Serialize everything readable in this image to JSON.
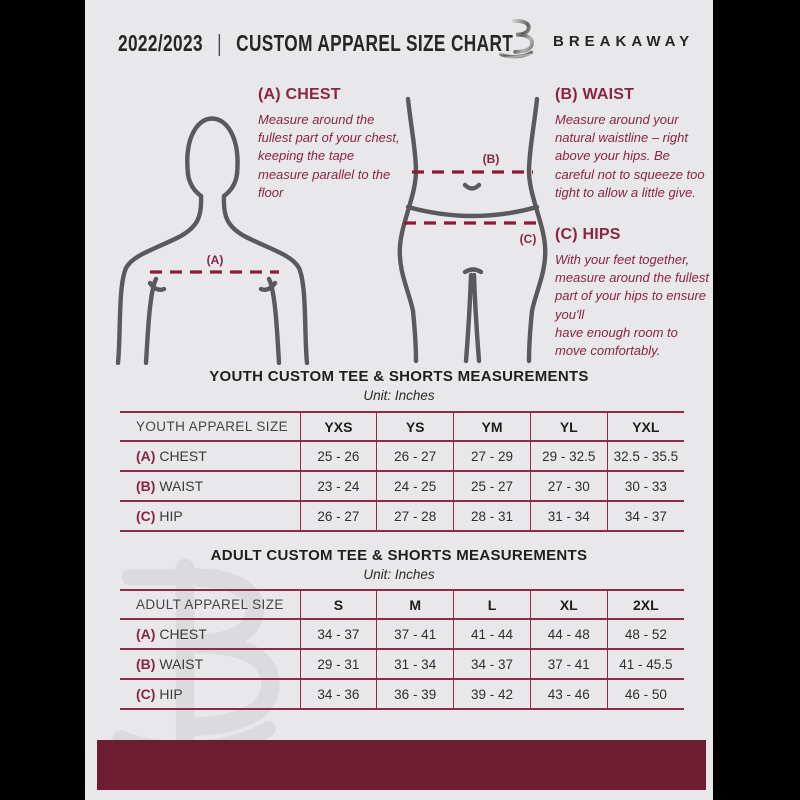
{
  "header": {
    "year": "2022/2023",
    "separator": "|",
    "title": "CUSTOM APPAREL SIZE CHART",
    "brand": "BREAKAWAY"
  },
  "guide": {
    "chest": {
      "heading": "(A) CHEST",
      "marker": "(A)",
      "description": "Measure around the fullest part of your chest, keeping the tape measure parallel to the floor"
    },
    "waist": {
      "heading": "(B) WAIST",
      "marker": "(B)",
      "description": "Measure around your natural waistline – right above your hips. Be careful not to squeeze too tight to allow a little give."
    },
    "hips": {
      "heading": "(C) HIPS",
      "marker": "(C)",
      "description": "With your feet together, measure around the fullest part of your hips to ensure you'll\nhave enough room to move comfortably."
    }
  },
  "chart_data": [
    {
      "type": "table",
      "name": "youth",
      "title": "YOUTH CUSTOM TEE & SHORTS MEASUREMENTS",
      "unit": "Unit: Inches",
      "columns": [
        "YOUTH APPAREL SIZE",
        "YXS",
        "YS",
        "YM",
        "YL",
        "YXL"
      ],
      "rows": [
        {
          "marker": "(A)",
          "label": "CHEST",
          "values": [
            "25 - 26",
            "26 - 27",
            "27 - 29",
            "29 - 32.5",
            "32.5 - 35.5"
          ]
        },
        {
          "marker": "(B)",
          "label": "WAIST",
          "values": [
            "23 - 24",
            "24 - 25",
            "25 - 27",
            "27 - 30",
            "30 - 33"
          ]
        },
        {
          "marker": "(C)",
          "label": "HIP",
          "values": [
            "26 - 27",
            "27 - 28",
            "28 - 31",
            "31 - 34",
            "34 - 37"
          ]
        }
      ]
    },
    {
      "type": "table",
      "name": "adult",
      "title": "ADULT CUSTOM TEE & SHORTS MEASUREMENTS",
      "unit": "Unit: Inches",
      "columns": [
        "ADULT APPAREL SIZE",
        "S",
        "M",
        "L",
        "XL",
        "2XL"
      ],
      "rows": [
        {
          "marker": "(A)",
          "label": "CHEST",
          "values": [
            "34 - 37",
            "37 - 41",
            "41 - 44",
            "44 - 48",
            "48 - 52"
          ]
        },
        {
          "marker": "(B)",
          "label": "WAIST",
          "values": [
            "29 - 31",
            "31 - 34",
            "34 - 37",
            "37 - 41",
            "41 - 45.5"
          ]
        },
        {
          "marker": "(C)",
          "label": "HIP",
          "values": [
            "34 - 36",
            "36 - 39",
            "39 - 42",
            "43 - 46",
            "46 - 50"
          ]
        }
      ]
    }
  ],
  "colors": {
    "accent_maroon": "#8b2346",
    "table_border_maroon": "#8f2b48",
    "footer_bar_maroon": "#6e1c32",
    "page_background": "#e8e8ea",
    "side_bars": "#000000",
    "figure_gray": "#5a5a5c",
    "text_dark": "#262626"
  }
}
